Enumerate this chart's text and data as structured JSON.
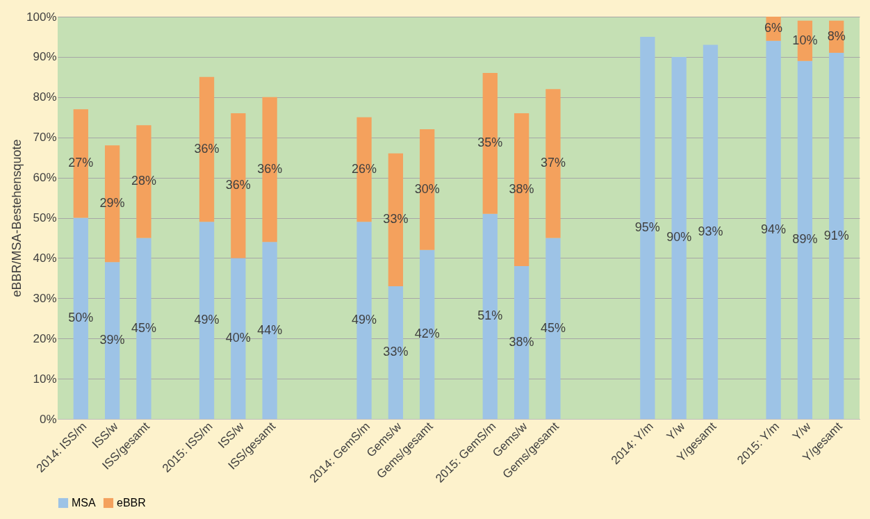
{
  "chart_data": {
    "type": "bar",
    "stacked": true,
    "ylabel": "eBBR/MSA-Bestehensquote",
    "categories": [
      "2014: ISS/m",
      "ISS/w",
      "ISS/gesamt",
      null,
      "2015: ISS/m",
      "ISS/w",
      "ISS/gesamt",
      null,
      null,
      "2014: GemS/m",
      "Gems/w",
      "Gems/gesamt",
      null,
      "2015: GemS/m",
      "Gems/w",
      "Gems/gesamt",
      null,
      null,
      "2014: Y/m",
      "Y/w",
      "Y/gesamt",
      null,
      "2015: Y/m",
      "Y/w",
      "Y/gesamt"
    ],
    "series": [
      {
        "name": "MSA",
        "color": "#9dc3e6",
        "values": [
          50,
          39,
          45,
          null,
          49,
          40,
          44,
          null,
          null,
          49,
          33,
          42,
          null,
          51,
          38,
          45,
          null,
          null,
          95,
          90,
          93,
          null,
          94,
          89,
          91
        ],
        "value_labels": [
          "50%",
          "39%",
          "45%",
          null,
          "49%",
          "40%",
          "44%",
          null,
          null,
          "49%",
          "33%",
          "42%",
          null,
          "51%",
          "38%",
          "45%",
          null,
          null,
          "95%",
          "90%",
          "93%",
          null,
          "94%",
          "89%",
          "91%"
        ]
      },
      {
        "name": "eBBR",
        "color": "#f4a15d",
        "values": [
          27,
          29,
          28,
          null,
          36,
          36,
          36,
          null,
          null,
          26,
          33,
          30,
          null,
          35,
          38,
          37,
          null,
          null,
          null,
          null,
          null,
          null,
          6,
          10,
          8
        ],
        "value_labels": [
          "27%",
          "29%",
          "28%",
          null,
          "36%",
          "36%",
          "36%",
          null,
          null,
          "26%",
          "33%",
          "30%",
          null,
          "35%",
          "38%",
          "37%",
          null,
          null,
          null,
          null,
          null,
          null,
          "6%",
          "10%",
          "8%"
        ]
      }
    ],
    "ylim": [
      0,
      100
    ],
    "yticks": [
      {
        "value": 0,
        "label": "0%"
      },
      {
        "value": 10,
        "label": "10%"
      },
      {
        "value": 20,
        "label": "20%"
      },
      {
        "value": 30,
        "label": "30%"
      },
      {
        "value": 40,
        "label": "40%"
      },
      {
        "value": 50,
        "label": "50%"
      },
      {
        "value": 60,
        "label": "60%"
      },
      {
        "value": 70,
        "label": "70%"
      },
      {
        "value": 80,
        "label": "80%"
      },
      {
        "value": 90,
        "label": "90%"
      },
      {
        "value": 100,
        "label": "100%"
      }
    ],
    "grid": "y",
    "legend": "bottom"
  }
}
